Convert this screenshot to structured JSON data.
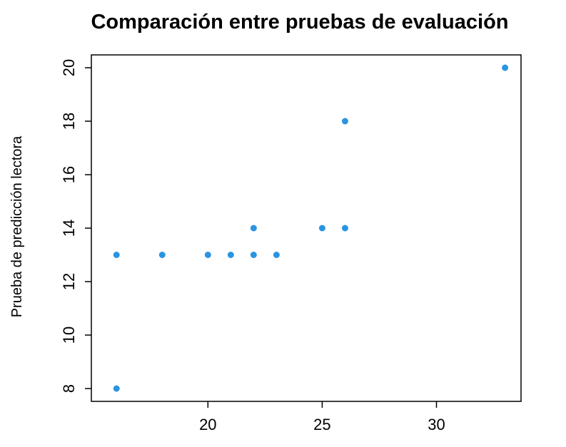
{
  "chart_data": {
    "type": "scatter",
    "title": "Comparación entre pruebas de evaluación",
    "y_label": "Prueba de predicción lectora",
    "x": [
      16,
      16,
      18,
      20,
      21,
      22,
      22,
      23,
      25,
      26,
      26,
      33
    ],
    "values": [
      13,
      8,
      13,
      13,
      13,
      13,
      14,
      13,
      14,
      14,
      18,
      20
    ],
    "color": "#2b94e1",
    "xlim": [
      14.9,
      33.7
    ],
    "xticks": [
      20,
      25,
      30
    ],
    "ylim": [
      7.52,
      20.48
    ],
    "yticks": [
      8,
      10,
      12,
      14,
      16,
      18,
      20
    ]
  }
}
